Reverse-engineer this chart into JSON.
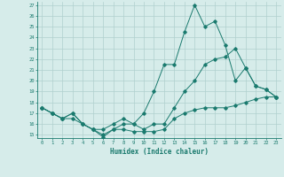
{
  "xlabel": "Humidex (Indice chaleur)",
  "ylabel": "",
  "background_color": "#d6ecea",
  "grid_color": "#b0d0ce",
  "line_color": "#1a7a6e",
  "xlim": [
    -0.5,
    23.5
  ],
  "ylim": [
    14.7,
    27.3
  ],
  "xticks": [
    0,
    1,
    2,
    3,
    4,
    5,
    6,
    7,
    8,
    9,
    10,
    11,
    12,
    13,
    14,
    15,
    16,
    17,
    18,
    19,
    20,
    21,
    22,
    23
  ],
  "yticks": [
    15,
    16,
    17,
    18,
    19,
    20,
    21,
    22,
    23,
    24,
    25,
    26,
    27
  ],
  "series1_x": [
    0,
    1,
    2,
    3,
    4,
    5,
    6,
    7,
    8,
    9,
    10,
    11,
    12,
    13,
    14,
    15,
    16,
    17,
    18,
    19,
    20,
    21,
    22,
    23
  ],
  "series1_y": [
    17.5,
    17,
    16.5,
    17,
    16,
    15.5,
    14.8,
    15.5,
    15.5,
    15.3,
    15.3,
    15.3,
    15.5,
    16.5,
    17,
    17.3,
    17.5,
    17.5,
    17.5,
    17.7,
    18,
    18.3,
    18.5,
    18.5
  ],
  "series2_x": [
    0,
    1,
    2,
    3,
    4,
    5,
    6,
    7,
    8,
    9,
    10,
    11,
    12,
    13,
    14,
    15,
    16,
    17,
    18,
    19,
    20,
    21,
    22,
    23
  ],
  "series2_y": [
    17.5,
    17,
    16.5,
    17,
    16,
    15.5,
    15,
    15.5,
    16,
    16,
    17,
    19,
    21.5,
    21.5,
    24.5,
    27,
    25,
    25.5,
    23.3,
    20,
    21.2,
    19.5,
    19.2,
    18.5
  ],
  "series3_x": [
    0,
    1,
    2,
    3,
    4,
    5,
    6,
    7,
    8,
    9,
    10,
    11,
    12,
    13,
    14,
    15,
    16,
    17,
    18,
    19,
    20,
    21,
    22,
    23
  ],
  "series3_y": [
    17.5,
    17,
    16.5,
    16.5,
    16,
    15.5,
    15.5,
    16,
    16.5,
    16,
    15.5,
    16,
    16,
    17.5,
    19,
    20,
    21.5,
    22,
    22.2,
    23,
    21.2,
    19.5,
    19.2,
    18.5
  ]
}
